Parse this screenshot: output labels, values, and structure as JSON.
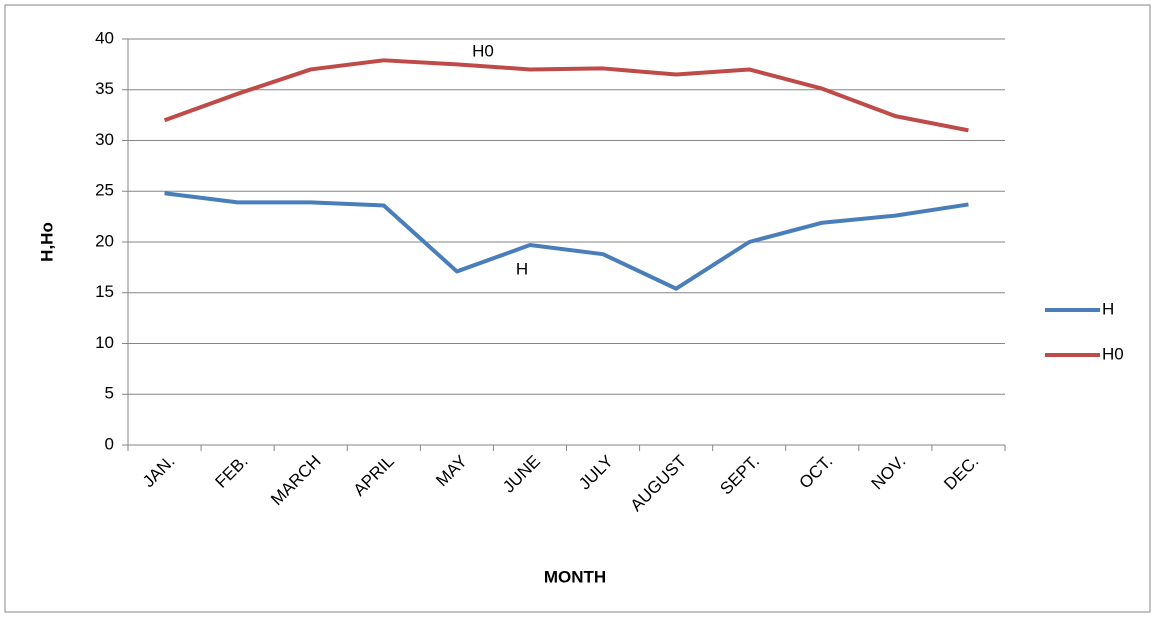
{
  "chart_data": {
    "type": "line",
    "x_label": "MONTH",
    "y_label": "H,Ho",
    "categories": [
      "JAN.",
      "FEB.",
      "MARCH",
      "APRIL",
      "MAY",
      "JUNE",
      "JULY",
      "AUGUST",
      "SEPT.",
      "OCT.",
      "NOV.",
      "DEC."
    ],
    "series": [
      {
        "name": "H",
        "color": "#4a7ebb",
        "values": [
          24.8,
          23.9,
          23.9,
          23.6,
          17.1,
          19.7,
          18.8,
          15.4,
          20.0,
          21.9,
          22.6,
          23.7
        ]
      },
      {
        "name": "H0",
        "color": "#be4b48",
        "values": [
          32.0,
          34.6,
          37.0,
          37.9,
          37.5,
          37.0,
          37.1,
          36.5,
          37.0,
          35.1,
          32.4,
          31.0
        ]
      }
    ],
    "annotations": [
      "H0",
      "H"
    ],
    "ylim": [
      0,
      40
    ],
    "yticks": [
      0,
      5,
      10,
      15,
      20,
      25,
      30,
      35,
      40
    ],
    "grid": true,
    "legend": "right"
  }
}
